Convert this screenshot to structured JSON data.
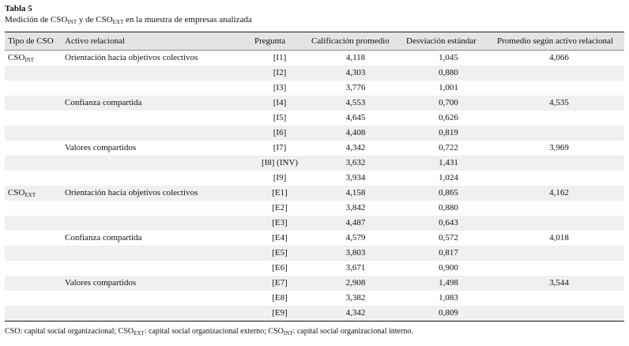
{
  "caption": {
    "label": "Tabla 5",
    "p1": "Medición de CSO",
    "s1": "INT",
    "p2": " y de CSO",
    "s2": "EXT",
    "p3": " en la muestra de empresas analizada"
  },
  "table": {
    "headers": [
      "Tipo de CSO",
      "Activo relacional",
      "Pregunta",
      "Calificación promedio",
      "Desviación estándar",
      "Promedio según activo relacional"
    ],
    "rows": [
      {
        "tipo_base": "CSO",
        "tipo_sub": "INT",
        "activo": "Orientación hacia objetivos colectivos",
        "pregunta": "[I1]",
        "calificacion": "4,118",
        "desviacion": "1,045",
        "promedio": "4,066"
      },
      {
        "pregunta": "[I2]",
        "calificacion": "4,303",
        "desviacion": "0,880"
      },
      {
        "pregunta": "[I3]",
        "calificacion": "3,776",
        "desviacion": "1,001"
      },
      {
        "activo": "Confianza compartida",
        "pregunta": "[I4]",
        "calificacion": "4,553",
        "desviacion": "0,700",
        "promedio": "4,535"
      },
      {
        "pregunta": "[I5]",
        "calificacion": "4,645",
        "desviacion": "0,626"
      },
      {
        "pregunta": "[I6]",
        "calificacion": "4,408",
        "desviacion": "0,819"
      },
      {
        "activo": "Valores compartidos",
        "pregunta": "[I7]",
        "calificacion": "4,342",
        "desviacion": "0,722",
        "promedio": "3,969"
      },
      {
        "pregunta": "[I8] (INV)",
        "calificacion": "3,632",
        "desviacion": "1,431"
      },
      {
        "pregunta": "[I9]",
        "calificacion": "3,934",
        "desviacion": "1,024"
      },
      {
        "tipo_base": "CSO",
        "tipo_sub": "EXT",
        "activo": "Orientación hacia objetivos colectivos",
        "pregunta": "[E1]",
        "calificacion": "4,158",
        "desviacion": "0,865",
        "promedio": "4,162"
      },
      {
        "pregunta": "[E2]",
        "calificacion": "3,842",
        "desviacion": "0,880"
      },
      {
        "pregunta": "[E3]",
        "calificacion": "4,487",
        "desviacion": "0,643"
      },
      {
        "activo": "Confianza compartida",
        "pregunta": "[E4]",
        "calificacion": "4,579",
        "desviacion": "0,572",
        "promedio": "4,018"
      },
      {
        "pregunta": "[E5]",
        "calificacion": "3,803",
        "desviacion": "0,817"
      },
      {
        "pregunta": "[E6]",
        "calificacion": "3,671",
        "desviacion": "0,900"
      },
      {
        "activo": "Valores compartidos",
        "pregunta": "[E7]",
        "calificacion": "2,908",
        "desviacion": "1,498",
        "promedio": "3,544"
      },
      {
        "pregunta": "[E8]",
        "calificacion": "3,382",
        "desviacion": "1,083"
      },
      {
        "pregunta": "[E9]",
        "calificacion": "4,342",
        "desviacion": "0,809"
      }
    ]
  },
  "footnote": {
    "p1": "CSO: capital social organizacional; CSO",
    "s1": "EXT",
    "p2": ": capital social organizacional externo; CSO",
    "s2": "INT",
    "p3": ": capital social organizacional interno."
  }
}
